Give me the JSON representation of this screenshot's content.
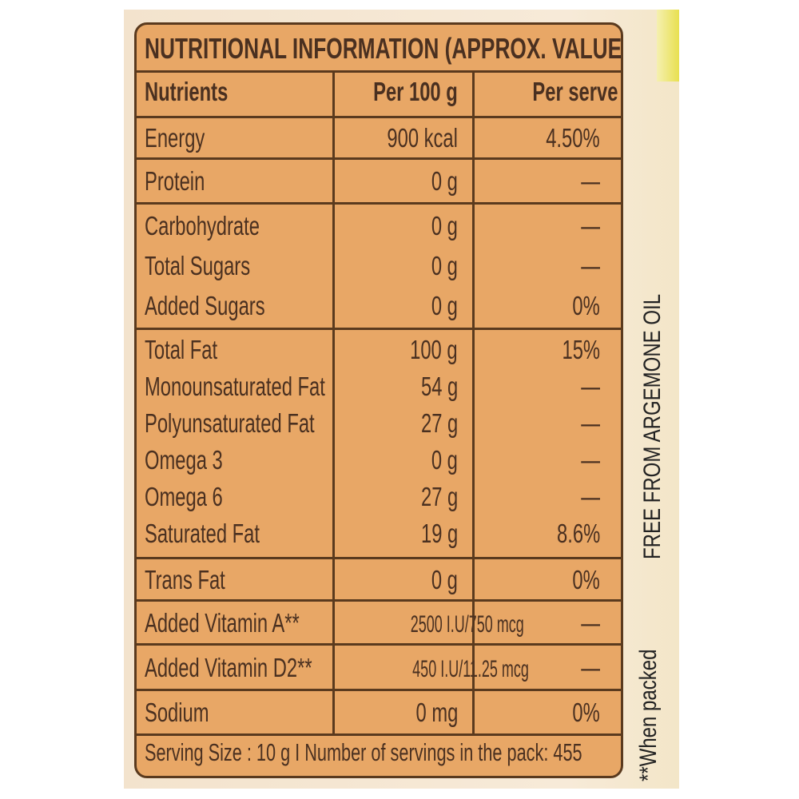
{
  "title": "NUTRITIONAL INFORMATION (APPROX. VALUES)",
  "headers": [
    "Nutrients",
    "Per 100 g",
    "Per serve %RDA"
  ],
  "groups": [
    {
      "rows": [
        {
          "nutrient": "Energy",
          "per100": "900 kcal",
          "rda": "4.50%"
        }
      ]
    },
    {
      "rows": [
        {
          "nutrient": "Protein",
          "per100": "0 g",
          "rda": "—"
        }
      ]
    },
    {
      "rows": [
        {
          "nutrient": "Carbohydrate",
          "per100": "0 g",
          "rda": "—"
        },
        {
          "nutrient": "Total Sugars",
          "per100": "0 g",
          "rda": "—"
        },
        {
          "nutrient": "Added Sugars",
          "per100": "0 g",
          "rda": "0%"
        }
      ]
    },
    {
      "rows": [
        {
          "nutrient": "Total Fat",
          "per100": "100 g",
          "rda": "15%"
        },
        {
          "nutrient": "Monounsaturated Fat",
          "per100": "54 g",
          "rda": "—"
        },
        {
          "nutrient": "Polyunsaturated Fat",
          "per100": "27 g",
          "rda": "—"
        },
        {
          "nutrient": "Omega 3",
          "per100": "0 g",
          "rda": "—"
        },
        {
          "nutrient": "Omega 6",
          "per100": "27 g",
          "rda": "—"
        },
        {
          "nutrient": "Saturated Fat",
          "per100": "19 g",
          "rda": "8.6%"
        }
      ]
    },
    {
      "rows": [
        {
          "nutrient": "Trans Fat",
          "per100": "0 g",
          "rda": "0%"
        }
      ]
    },
    {
      "rows": [
        {
          "nutrient": "Added Vitamin A**",
          "per100": "2500 I.U/750 mcg",
          "rda": "—"
        }
      ]
    },
    {
      "rows": [
        {
          "nutrient": "Added Vitamin D2**",
          "per100": "450 I.U/11.25 mcg",
          "rda": "—"
        }
      ]
    },
    {
      "rows": [
        {
          "nutrient": "Sodium",
          "per100": "0 mg",
          "rda": "0%"
        }
      ]
    }
  ],
  "footer": "Serving  Size : 10 g  I  Number of servings in the pack: 455",
  "side_text": "FREE FROM ARGEMONE OIL",
  "footnote": "**When packed",
  "colors": {
    "label_fill": "#e8a766",
    "border": "#5a3a1e",
    "text": "#4a3020"
  }
}
